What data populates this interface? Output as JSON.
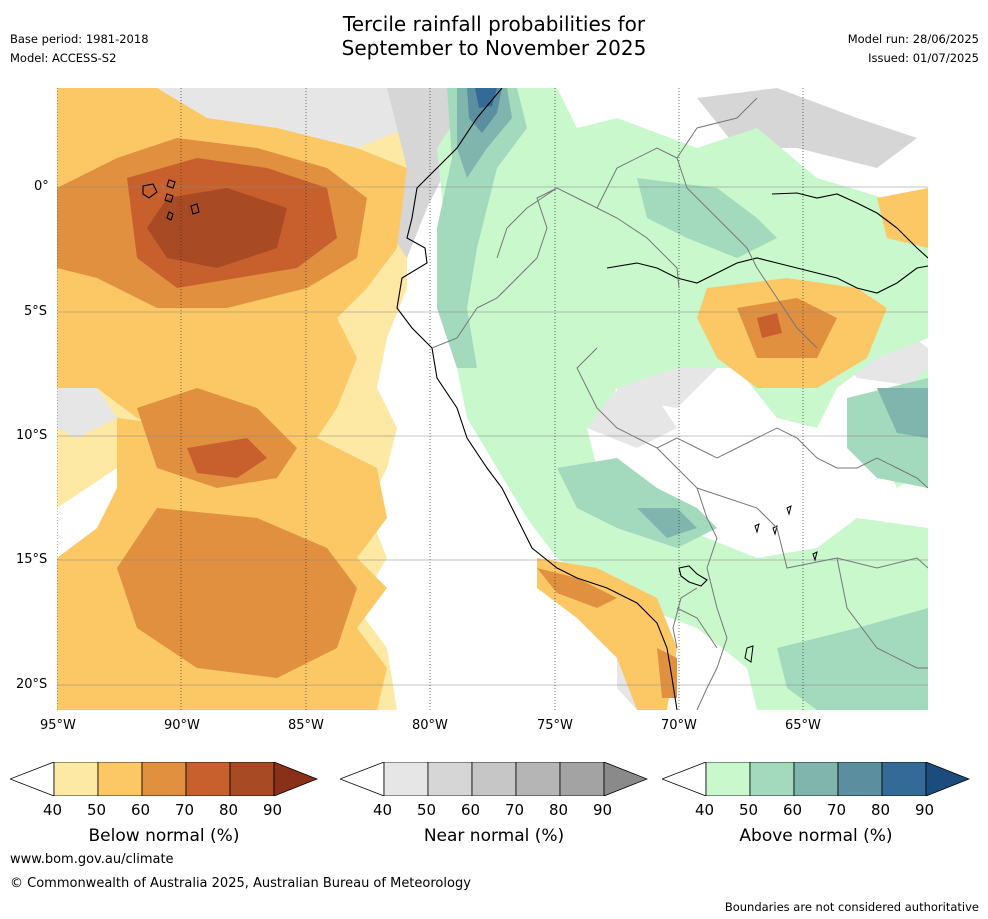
{
  "title": {
    "line1": "Tercile rainfall probabilities for",
    "line2": "September to November 2025"
  },
  "meta": {
    "base_period": "Base period: 1981-2018",
    "model": "Model: ACCESS-S2",
    "model_run": "Model run: 28/06/2025",
    "issued": "Issued: 01/07/2025"
  },
  "map": {
    "lat_labels": [
      "0°",
      "5°S",
      "10°S",
      "15°S",
      "20°S"
    ],
    "lon_labels": [
      "95°W",
      "90°W",
      "85°W",
      "80°W",
      "75°W",
      "70°W",
      "65°W"
    ],
    "colors": {
      "below": [
        "#fde9a4",
        "#fcc866",
        "#e0903f",
        "#c8602e",
        "#a84a24",
        "#8a2f18"
      ],
      "near": [
        "#e6e6e6",
        "#d6d6d6",
        "#c6c6c6",
        "#b5b5b5",
        "#a3a3a3",
        "#8a8a8a"
      ],
      "above": [
        "#c8f8cc",
        "#a3d9bd",
        "#7fb5ad",
        "#5b8fa0",
        "#336a96",
        "#1c4b7e"
      ]
    }
  },
  "colorbars": [
    {
      "name": "below",
      "label": "Below normal (%)",
      "ticks": [
        "40",
        "50",
        "60",
        "70",
        "80",
        "90"
      ]
    },
    {
      "name": "near",
      "label": "Near normal (%)",
      "ticks": [
        "40",
        "50",
        "60",
        "70",
        "80",
        "90"
      ]
    },
    {
      "name": "above",
      "label": "Above normal (%)",
      "ticks": [
        "40",
        "50",
        "60",
        "70",
        "80",
        "90"
      ]
    }
  ],
  "footer": {
    "website": "www.bom.gov.au/climate",
    "copyright": "© Commonwealth of Australia 2025, Australian Bureau of Meteorology",
    "disclaimer": "Boundaries are not considered authoritative"
  }
}
